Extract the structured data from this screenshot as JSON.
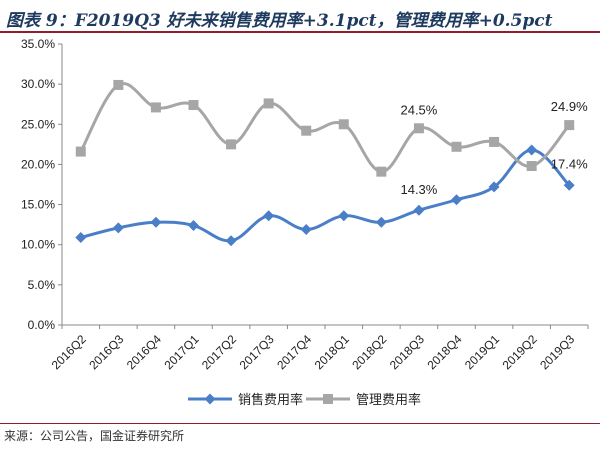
{
  "header": {
    "title": "图表 9：F2019Q3 好未来销售费用率+3.1pct，管理费用率+0.5pct"
  },
  "footer": {
    "source": "来源：公司公告，国金证券研究所"
  },
  "chart_data": {
    "type": "line",
    "categories": [
      "2016Q2",
      "2016Q3",
      "2016Q4",
      "2017Q1",
      "2017Q2",
      "2017Q3",
      "2017Q4",
      "2018Q1",
      "2018Q2",
      "2018Q3",
      "2018Q4",
      "2019Q1",
      "2019Q2",
      "2019Q3"
    ],
    "y_ticks": [
      "0.0%",
      "5.0%",
      "10.0%",
      "15.0%",
      "20.0%",
      "25.0%",
      "30.0%",
      "35.0%"
    ],
    "ylim": [
      0,
      35
    ],
    "series": [
      {
        "name": "销售费用率",
        "color": "#4a7fc8",
        "marker": "diamond",
        "values": [
          10.9,
          12.1,
          12.8,
          12.4,
          10.5,
          13.6,
          11.9,
          13.6,
          12.8,
          14.3,
          15.6,
          17.2,
          21.8,
          17.4
        ]
      },
      {
        "name": "管理费用率",
        "color": "#a6a6a6",
        "marker": "square",
        "values": [
          21.6,
          29.9,
          27.1,
          27.4,
          22.5,
          27.6,
          24.2,
          25.0,
          19.1,
          24.5,
          22.2,
          22.8,
          19.8,
          24.9
        ]
      }
    ],
    "annotations": [
      {
        "text": "24.5%",
        "series": 1,
        "index": 9,
        "pos": "above"
      },
      {
        "text": "24.9%",
        "series": 1,
        "index": 13,
        "pos": "above"
      },
      {
        "text": "17.4%",
        "series": 0,
        "index": 13,
        "pos": "above"
      },
      {
        "text": "14.3%",
        "series": 0,
        "index": 9,
        "pos": "above"
      }
    ],
    "legend": "bottom-center",
    "grid": false
  }
}
